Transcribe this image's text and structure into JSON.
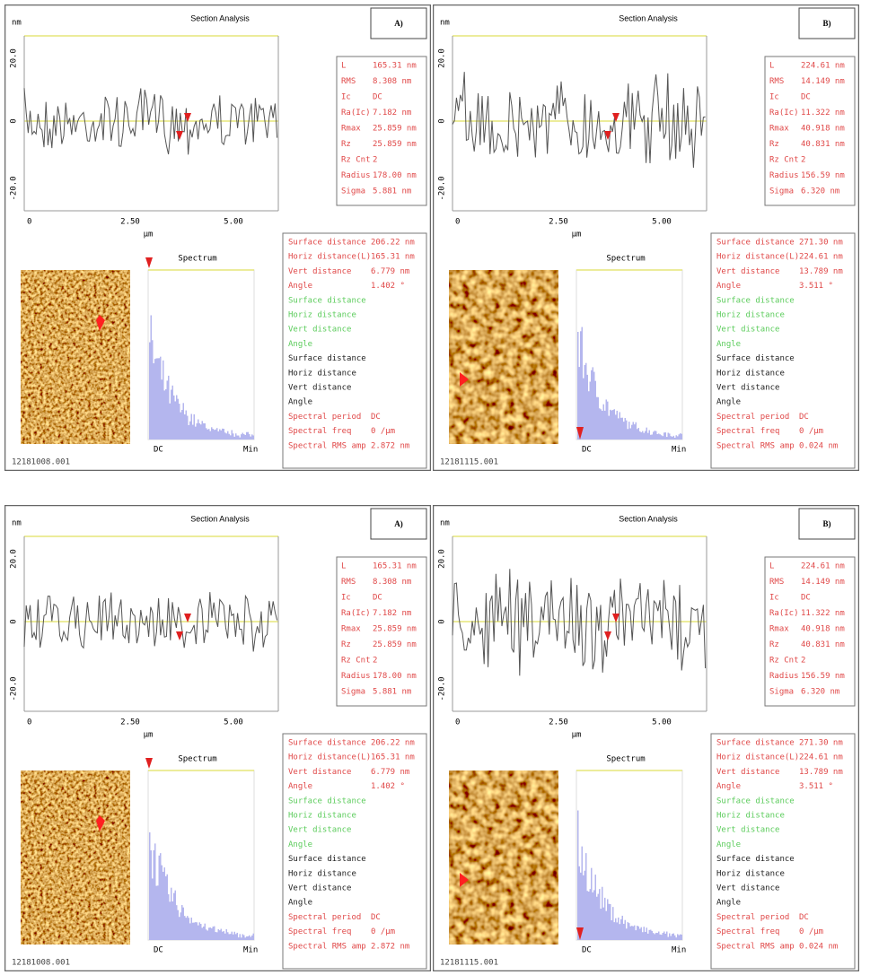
{
  "panels": [
    {
      "title": "Section Analysis",
      "label": "A)",
      "y_unit": "nm",
      "y_ticks": [
        "20.0",
        "0",
        "-20.0"
      ],
      "x_ticks": [
        "0",
        "2.50",
        "5.00"
      ],
      "x_unit": "µm",
      "stats": [
        [
          "L",
          "165.31 nm"
        ],
        [
          "RMS",
          "8.308 nm"
        ],
        [
          "Ic",
          "DC"
        ],
        [
          "Ra(Ic)",
          "7.182 nm"
        ],
        [
          "Rmax",
          "25.859 nm"
        ],
        [
          "Rz",
          "25.859 nm"
        ],
        [
          "Rz Cnt",
          "2"
        ],
        [
          "Radius",
          "178.00 nm"
        ],
        [
          "Sigma",
          "5.881 nm"
        ]
      ],
      "spectrum_title": "Spectrum",
      "spectrum_x": [
        "DC",
        "Min"
      ],
      "measurements": [
        {
          "color": "#e04848",
          "rows": [
            [
              "Surface distance",
              "206.22 nm"
            ],
            [
              "Horiz distance(L)",
              "165.31 nm"
            ],
            [
              "Vert distance",
              "6.779 nm"
            ],
            [
              "Angle",
              "1.402 °"
            ]
          ]
        },
        {
          "color": "#5ccc5c",
          "rows": [
            [
              "Surface distance"
            ],
            [
              "Horiz distance"
            ],
            [
              "Vert distance"
            ],
            [
              "Angle"
            ]
          ]
        },
        {
          "color": "#222222",
          "rows": [
            [
              "Surface distance"
            ],
            [
              "Horiz distance"
            ],
            [
              "Vert distance"
            ],
            [
              "Angle"
            ]
          ]
        },
        {
          "color": "#e04848",
          "rows": [
            [
              "Spectral period",
              "DC"
            ],
            [
              "Spectral freq",
              "0 /µm"
            ],
            [
              "Spectral RMS amp",
              "2.872 nm"
            ]
          ]
        }
      ],
      "file": "12181008.001"
    },
    {
      "title": "Section Analysis",
      "label": "B)",
      "y_unit": "nm",
      "y_ticks": [
        "20.0",
        "0",
        "-20.0"
      ],
      "x_ticks": [
        "0",
        "2.50",
        "5.00"
      ],
      "x_unit": "µm",
      "stats": [
        [
          "L",
          "224.61 nm"
        ],
        [
          "RMS",
          "14.149 nm"
        ],
        [
          "Ic",
          "DC"
        ],
        [
          "Ra(Ic)",
          "11.322 nm"
        ],
        [
          "Rmax",
          "40.918 nm"
        ],
        [
          "Rz",
          "40.831 nm"
        ],
        [
          "Rz Cnt",
          "2"
        ],
        [
          "Radius",
          "156.59 nm"
        ],
        [
          "Sigma",
          "6.320 nm"
        ]
      ],
      "spectrum_title": "Spectrum",
      "spectrum_x": [
        "DC",
        "Min"
      ],
      "measurements": [
        {
          "color": "#e04848",
          "rows": [
            [
              "Surface distance",
              "271.30 nm"
            ],
            [
              "Horiz distance(L)",
              "224.61 nm"
            ],
            [
              "Vert distance",
              "13.789 nm"
            ],
            [
              "Angle",
              "3.511 °"
            ]
          ]
        },
        {
          "color": "#5ccc5c",
          "rows": [
            [
              "Surface distance"
            ],
            [
              "Horiz distance"
            ],
            [
              "Vert distance"
            ],
            [
              "Angle"
            ]
          ]
        },
        {
          "color": "#222222",
          "rows": [
            [
              "Surface distance"
            ],
            [
              "Horiz distance"
            ],
            [
              "Vert distance"
            ],
            [
              "Angle"
            ]
          ]
        },
        {
          "color": "#e04848",
          "rows": [
            [
              "Spectral period",
              "DC"
            ],
            [
              "Spectral freq",
              "0 /µm"
            ],
            [
              "Spectral RMS amp",
              "0.024 nm"
            ]
          ]
        }
      ],
      "file": "12181115.001"
    },
    {
      "title": "Section Analysis",
      "label": "A)",
      "y_unit": "nm",
      "y_ticks": [
        "20.0",
        "0",
        "-20.0"
      ],
      "x_ticks": [
        "0",
        "2.50",
        "5.00"
      ],
      "x_unit": "µm",
      "stats": [
        [
          "L",
          "165.31 nm"
        ],
        [
          "RMS",
          "8.308 nm"
        ],
        [
          "Ic",
          "DC"
        ],
        [
          "Ra(Ic)",
          "7.182 nm"
        ],
        [
          "Rmax",
          "25.859 nm"
        ],
        [
          "Rz",
          "25.859 nm"
        ],
        [
          "Rz Cnt",
          "2"
        ],
        [
          "Radius",
          "178.00 nm"
        ],
        [
          "Sigma",
          "5.881 nm"
        ]
      ],
      "spectrum_title": "Spectrum",
      "spectrum_x": [
        "DC",
        "Min"
      ],
      "measurements": [
        {
          "color": "#e04848",
          "rows": [
            [
              "Surface distance",
              "206.22 nm"
            ],
            [
              "Horiz distance(L)",
              "165.31 nm"
            ],
            [
              "Vert distance",
              "6.779 nm"
            ],
            [
              "Angle",
              "1.402 °"
            ]
          ]
        },
        {
          "color": "#5ccc5c",
          "rows": [
            [
              "Surface distance"
            ],
            [
              "Horiz distance"
            ],
            [
              "Vert distance"
            ],
            [
              "Angle"
            ]
          ]
        },
        {
          "color": "#222222",
          "rows": [
            [
              "Surface distance"
            ],
            [
              "Horiz distance"
            ],
            [
              "Vert distance"
            ],
            [
              "Angle"
            ]
          ]
        },
        {
          "color": "#e04848",
          "rows": [
            [
              "Spectral period",
              "DC"
            ],
            [
              "Spectral freq",
              "0 /µm"
            ],
            [
              "Spectral RMS amp",
              "2.872 nm"
            ]
          ]
        }
      ],
      "file": "12181008.001"
    },
    {
      "title": "Section Analysis",
      "label": "B)",
      "y_unit": "nm",
      "y_ticks": [
        "20.0",
        "0",
        "-20.0"
      ],
      "x_ticks": [
        "0",
        "2.50",
        "5.00"
      ],
      "x_unit": "µm",
      "stats": [
        [
          "L",
          "224.61 nm"
        ],
        [
          "RMS",
          "14.149 nm"
        ],
        [
          "Ic",
          "DC"
        ],
        [
          "Ra(Ic)",
          "11.322 nm"
        ],
        [
          "Rmax",
          "40.918 nm"
        ],
        [
          "Rz",
          "40.831 nm"
        ],
        [
          "Rz Cnt",
          "2"
        ],
        [
          "Radius",
          "156.59 nm"
        ],
        [
          "Sigma",
          "6.320 nm"
        ]
      ],
      "spectrum_title": "Spectrum",
      "spectrum_x": [
        "DC",
        "Min"
      ],
      "measurements": [
        {
          "color": "#e04848",
          "rows": [
            [
              "Surface distance",
              "271.30 nm"
            ],
            [
              "Horiz distance(L)",
              "224.61 nm"
            ],
            [
              "Vert distance",
              "13.789 nm"
            ],
            [
              "Angle",
              "3.511 °"
            ]
          ]
        },
        {
          "color": "#5ccc5c",
          "rows": [
            [
              "Surface distance"
            ],
            [
              "Horiz distance"
            ],
            [
              "Vert distance"
            ],
            [
              "Angle"
            ]
          ]
        },
        {
          "color": "#222222",
          "rows": [
            [
              "Surface distance"
            ],
            [
              "Horiz distance"
            ],
            [
              "Vert distance"
            ],
            [
              "Angle"
            ]
          ]
        },
        {
          "color": "#e04848",
          "rows": [
            [
              "Spectral period",
              "DC"
            ],
            [
              "Spectral freq",
              "0 /µm"
            ],
            [
              "Spectral RMS amp",
              "0.024 nm"
            ]
          ]
        }
      ],
      "file": "12181115.001"
    }
  ]
}
